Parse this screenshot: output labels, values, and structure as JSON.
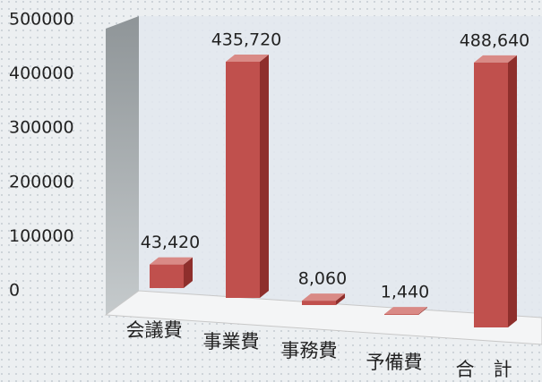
{
  "chart_data": {
    "type": "bar3d",
    "categories": [
      "会議費",
      "事業費",
      "事務費",
      "予備費",
      "合　計"
    ],
    "values": [
      43420,
      435720,
      8060,
      1440,
      488640
    ],
    "value_labels": [
      "43,420",
      "435,720",
      "8,060",
      "1,440",
      "488,640"
    ],
    "color": "#c0504d",
    "ylim": [
      0,
      500000
    ],
    "yticks": [
      0,
      100000,
      200000,
      300000,
      400000,
      500000
    ]
  }
}
